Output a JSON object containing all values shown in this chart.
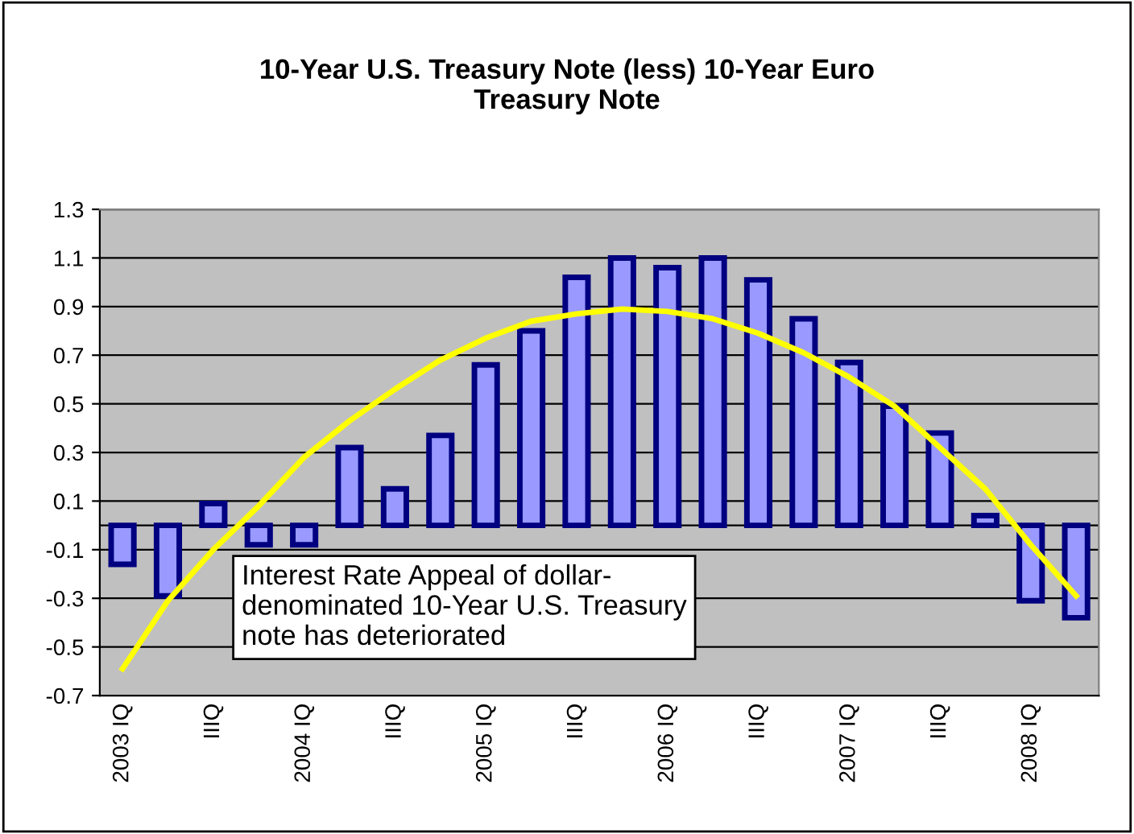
{
  "chart_data": {
    "type": "bar",
    "title": "10-Year U.S. Treasury Note (less) 10-Year Euro\nTreasury Note",
    "categories": [
      "2003 IQ",
      null,
      "IIIQ",
      null,
      "2004 IQ",
      null,
      "IIIQ",
      null,
      "2005 IQ",
      null,
      "IIIQ",
      null,
      "2006 IQ",
      null,
      "IIIQ",
      null,
      "2007 IQ",
      null,
      "IIIQ",
      null,
      "2008 IQ",
      null
    ],
    "series": [
      {
        "color": "#9999ff",
        "values": [
          -0.16,
          -0.29,
          0.09,
          -0.08,
          -0.08,
          0.32,
          0.15,
          0.37,
          0.66,
          0.8,
          1.02,
          1.1,
          1.06,
          1.1,
          1.01,
          0.85,
          0.67,
          0.49,
          0.38,
          0.04,
          -0.31,
          -0.38
        ]
      },
      {
        "type": "line",
        "color": "#ffff00",
        "values": [
          -0.59,
          -0.31,
          -0.1,
          0.08,
          0.28,
          0.43,
          0.56,
          0.68,
          0.77,
          0.84,
          0.87,
          0.89,
          0.88,
          0.85,
          0.79,
          0.71,
          0.61,
          0.49,
          0.32,
          0.15,
          -0.08,
          -0.29
        ]
      }
    ],
    "ylim": [
      -0.7,
      1.3
    ],
    "yticks": [
      -0.7,
      -0.5,
      -0.3,
      -0.1,
      0.1,
      0.3,
      0.5,
      0.7,
      0.9,
      1.1,
      1.3
    ],
    "grid": "y",
    "legend": false,
    "annotations": [
      "Interest Rate Appeal of dollar-\ndenominated 10-Year U.S. Treasury\nnote has deteriorated"
    ]
  }
}
